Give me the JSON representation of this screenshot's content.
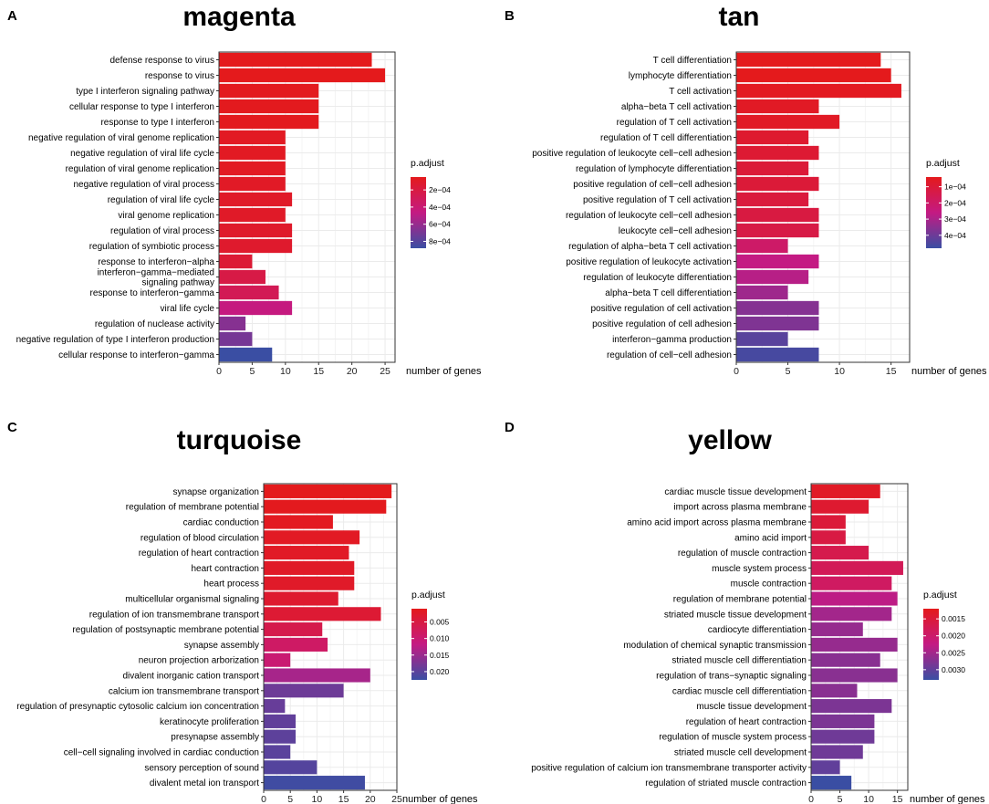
{
  "figure": {
    "colorbar_title": "p.adjust",
    "x_axis_label": "number of genes"
  },
  "colors": {
    "low": "#e41a1c",
    "mid": "#c41a83",
    "high": "#3a4ea3",
    "panel_bg": "#ffffff",
    "grid": "#ebebeb",
    "border": "#333333"
  },
  "chart_data": [
    {
      "panel_letter": "A",
      "title": "magenta",
      "type": "bar",
      "orientation": "horizontal",
      "xlabel": "number of genes",
      "xlim": [
        0,
        26.5
      ],
      "xticks": [
        0,
        5,
        10,
        15,
        20,
        25
      ],
      "legend_title": "p.adjust",
      "legend_range": [
        5e-05,
        0.00088
      ],
      "legend_ticks": [
        {
          "value": 0.0002,
          "label": "2e−04"
        },
        {
          "value": 0.0004,
          "label": "4e−04"
        },
        {
          "value": 0.0006,
          "label": "6e−04"
        },
        {
          "value": 0.0008,
          "label": "8e−04"
        }
      ],
      "categories": [
        "defense response to virus",
        "response to virus",
        "type I interferon signaling pathway",
        "cellular response to type I interferon",
        "response to type I interferon",
        "negative regulation of viral genome replication",
        "negative regulation of viral life cycle",
        "regulation of viral genome replication",
        "negative regulation of viral process",
        "regulation of viral life cycle",
        "viral genome replication",
        "regulation of viral process",
        "regulation of symbiotic process",
        "response to interferon−alpha",
        "interferon−gamma−mediated\nsignaling pathway",
        "response to interferon−gamma",
        "viral life cycle",
        "regulation of nuclease activity",
        "negative regulation of type I interferon production",
        "cellular response to interferon−gamma"
      ],
      "values": [
        23,
        25,
        15,
        15,
        15,
        10,
        10,
        10,
        10,
        11,
        10,
        11,
        11,
        5,
        7,
        9,
        11,
        4,
        5,
        8
      ],
      "p_adjust": [
        5e-05,
        5e-05,
        6e-05,
        6e-05,
        6e-05,
        8e-05,
        8e-05,
        8e-05,
        9e-05,
        0.0001,
        0.0001,
        0.00011,
        0.00012,
        0.00015,
        0.00022,
        0.00028,
        0.00045,
        0.00065,
        0.0007,
        0.00088
      ]
    },
    {
      "panel_letter": "B",
      "title": "tan",
      "type": "bar",
      "orientation": "horizontal",
      "xlabel": "number of genes",
      "xlim": [
        0,
        16.8
      ],
      "xticks": [
        0,
        5,
        10,
        15
      ],
      "legend_title": "p.adjust",
      "legend_range": [
        4e-05,
        0.00048
      ],
      "legend_ticks": [
        {
          "value": 0.0001,
          "label": "1e−04"
        },
        {
          "value": 0.0002,
          "label": "2e−04"
        },
        {
          "value": 0.0003,
          "label": "3e−04"
        },
        {
          "value": 0.0004,
          "label": "4e−04"
        }
      ],
      "categories": [
        "T cell differentiation",
        "lymphocyte differentiation",
        "T cell activation",
        "alpha−beta T cell activation",
        "regulation of T cell activation",
        "regulation of T cell differentiation",
        "positive regulation of leukocyte cell−cell adhesion",
        "regulation of lymphocyte differentiation",
        "positive regulation of cell−cell adhesion",
        "positive regulation of T cell activation",
        "regulation of leukocyte cell−cell adhesion",
        "leukocyte cell−cell adhesion",
        "regulation of alpha−beta T cell activation",
        "positive regulation of leukocyte activation",
        "regulation of leukocyte differentiation",
        "alpha−beta T cell differentiation",
        "positive regulation of cell activation",
        "positive regulation of cell adhesion",
        "interferon−gamma production",
        "regulation of cell−cell adhesion"
      ],
      "values": [
        14,
        15,
        16,
        8,
        10,
        7,
        8,
        7,
        8,
        7,
        8,
        8,
        5,
        8,
        7,
        5,
        8,
        8,
        5,
        8
      ],
      "p_adjust": [
        4e-05,
        4e-05,
        5e-05,
        6e-05,
        6e-05,
        8e-05,
        9e-05,
        0.0001,
        0.0001,
        0.00011,
        0.00012,
        0.00013,
        0.0002,
        0.00026,
        0.00028,
        0.00032,
        0.00036,
        0.00037,
        0.00043,
        0.00046
      ]
    },
    {
      "panel_letter": "C",
      "title": "turquoise",
      "type": "bar",
      "orientation": "horizontal",
      "xlabel": "number of genes",
      "xlim": [
        0,
        25
      ],
      "xticks": [
        0,
        5,
        10,
        15,
        20,
        25
      ],
      "legend_title": "p.adjust",
      "legend_range": [
        0.001,
        0.0225
      ],
      "legend_ticks": [
        {
          "value": 0.005,
          "label": "0.005"
        },
        {
          "value": 0.01,
          "label": "0.010"
        },
        {
          "value": 0.015,
          "label": "0.015"
        },
        {
          "value": 0.02,
          "label": "0.020"
        }
      ],
      "categories": [
        "synapse organization",
        "regulation of membrane potential",
        "cardiac conduction",
        "regulation of blood circulation",
        "regulation of heart contraction",
        "heart contraction",
        "heart process",
        "multicellular organismal signaling",
        "regulation of ion transmembrane transport",
        "regulation of postsynaptic membrane potential",
        "synapse assembly",
        "neuron projection arborization",
        "divalent inorganic cation transport",
        "calcium ion transmembrane transport",
        "regulation of presynaptic cytosolic calcium ion concentration",
        "keratinocyte proliferation",
        "presynapse assembly",
        "cell−cell signaling involved in cardiac conduction",
        "sensory perception of sound",
        "divalent metal ion transport"
      ],
      "values": [
        24,
        23,
        13,
        18,
        16,
        17,
        17,
        14,
        22,
        11,
        12,
        5,
        20,
        15,
        4,
        6,
        6,
        5,
        10,
        19
      ],
      "p_adjust": [
        0.001,
        0.0012,
        0.0015,
        0.0018,
        0.002,
        0.0022,
        0.0024,
        0.003,
        0.0035,
        0.006,
        0.0085,
        0.01,
        0.014,
        0.0185,
        0.019,
        0.0195,
        0.0198,
        0.02,
        0.0205,
        0.022
      ]
    },
    {
      "panel_letter": "D",
      "title": "yellow",
      "type": "bar",
      "orientation": "horizontal",
      "xlabel": "number of genes",
      "xlim": [
        0,
        16.8
      ],
      "xticks": [
        0,
        5,
        10,
        15
      ],
      "legend_title": "p.adjust",
      "legend_range": [
        0.0012,
        0.0033
      ],
      "legend_ticks": [
        {
          "value": 0.0015,
          "label": "0.0015"
        },
        {
          "value": 0.002,
          "label": "0.0020"
        },
        {
          "value": 0.0025,
          "label": "0.0025"
        },
        {
          "value": 0.003,
          "label": "0.0030"
        }
      ],
      "categories": [
        "cardiac muscle tissue development",
        "import across plasma membrane",
        "amino acid import across plasma membrane",
        "amino acid import",
        "regulation of muscle contraction",
        "muscle system process",
        "muscle contraction",
        "regulation of membrane potential",
        "striated muscle tissue development",
        "cardiocyte differentiation",
        "modulation of chemical synaptic transmission",
        "striated muscle cell differentiation",
        "regulation of trans−synaptic signaling",
        "cardiac muscle cell differentiation",
        "muscle tissue development",
        "regulation of heart contraction",
        "regulation of muscle system process",
        "striated muscle cell development",
        "positive regulation of calcium ion transmembrane transporter activity",
        "regulation of striated muscle contraction"
      ],
      "values": [
        12,
        10,
        6,
        6,
        10,
        16,
        14,
        15,
        14,
        9,
        15,
        12,
        15,
        8,
        14,
        11,
        11,
        9,
        5,
        7
      ],
      "p_adjust": [
        0.0013,
        0.0014,
        0.0015,
        0.0016,
        0.0017,
        0.0018,
        0.0019,
        0.0023,
        0.0025,
        0.0026,
        0.0026,
        0.0027,
        0.0027,
        0.0027,
        0.0028,
        0.0028,
        0.0029,
        0.0029,
        0.003,
        0.0033
      ]
    }
  ]
}
